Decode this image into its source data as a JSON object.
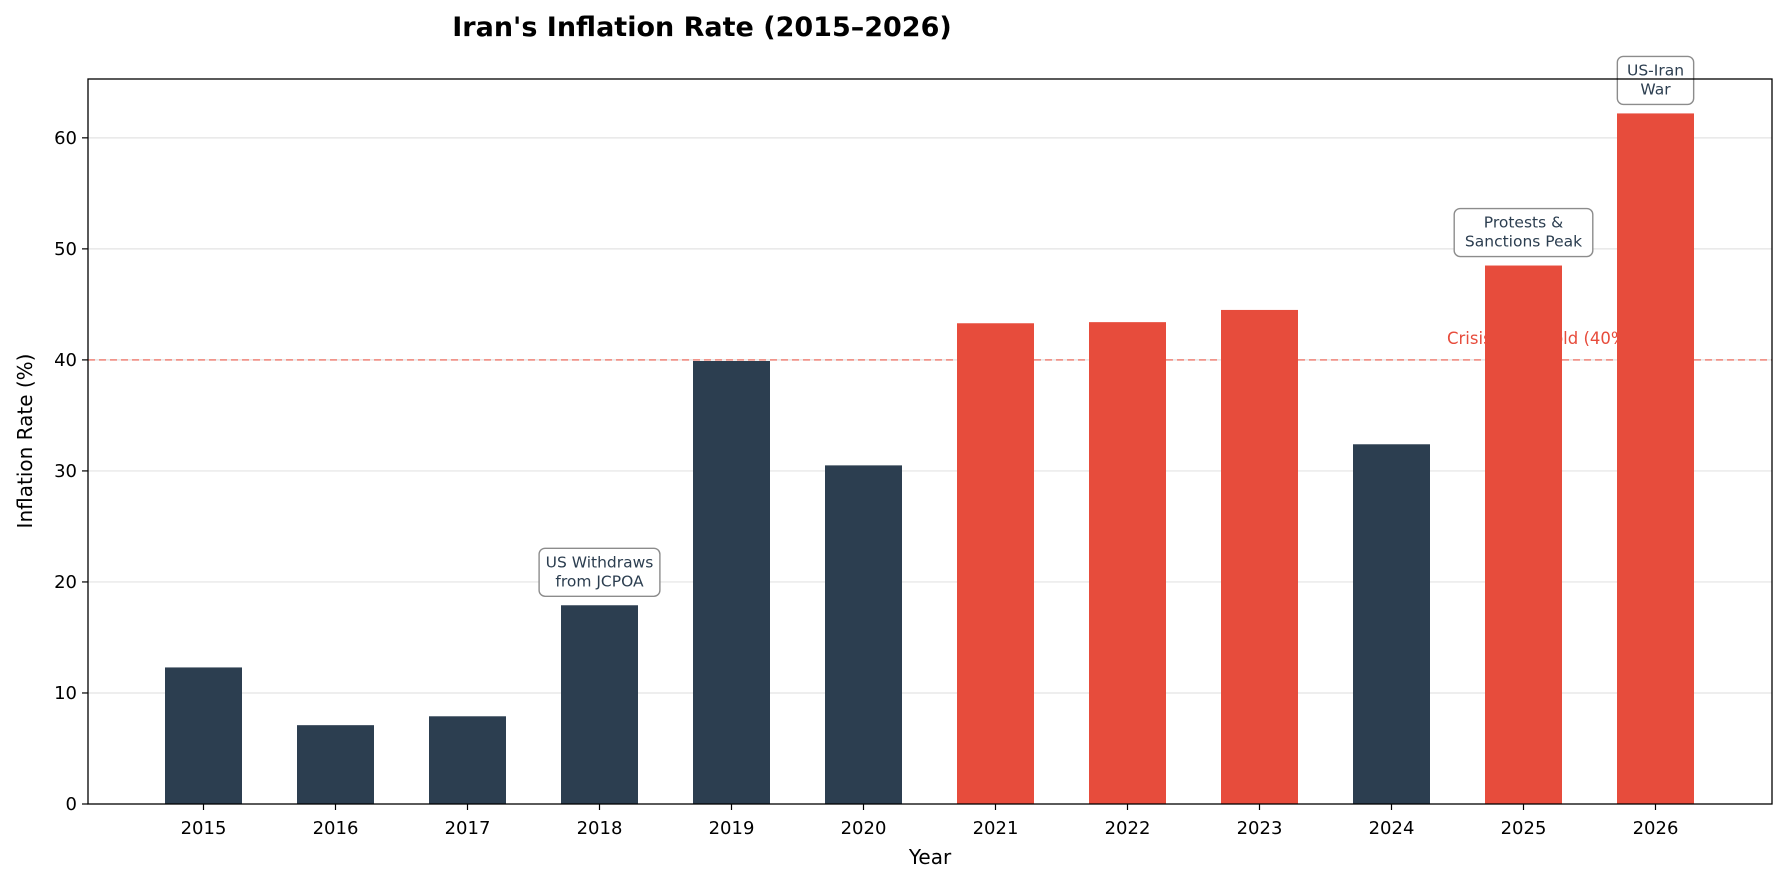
{
  "chart_data": {
    "type": "bar",
    "title": "Iran's Inflation Rate (2015–2026)",
    "xlabel": "Year",
    "ylabel": "Inflation Rate (%)",
    "categories": [
      "2015",
      "2016",
      "2017",
      "2018",
      "2019",
      "2020",
      "2021",
      "2022",
      "2023",
      "2024",
      "2025",
      "2026"
    ],
    "values": [
      12.3,
      7.1,
      7.9,
      17.9,
      39.9,
      30.5,
      43.3,
      43.4,
      44.5,
      32.4,
      48.5,
      62.2
    ],
    "ylim": [
      0,
      65.3
    ],
    "yticks": [
      0,
      10,
      20,
      30,
      40,
      50,
      60
    ],
    "grid": "horizontal",
    "colors": {
      "normal": "#2c3e50",
      "crisis": "#e74c3c",
      "threshold": "#f1948a",
      "threshold_text": "#e74c3c",
      "annotation_border": "#8c8c8c"
    },
    "threshold": {
      "value": 40,
      "label": "Crisis Threshold (40%)"
    },
    "annotations": [
      {
        "category": "2018",
        "lines": [
          "US Withdraws",
          "from JCPOA"
        ]
      },
      {
        "category": "2025",
        "lines": [
          "Protests &",
          "Sanctions Peak"
        ]
      },
      {
        "category": "2026",
        "lines": [
          "US-Iran",
          "War"
        ]
      }
    ]
  }
}
